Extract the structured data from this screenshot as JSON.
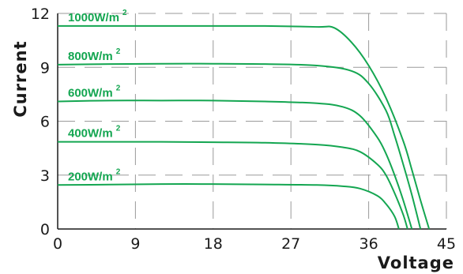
{
  "chart_data": {
    "type": "line",
    "xlabel": "Voltage",
    "ylabel": "Current",
    "xlim": [
      0,
      45
    ],
    "ylim": [
      0,
      12
    ],
    "xticks": [
      0,
      9,
      18,
      27,
      36,
      45
    ],
    "yticks": [
      0,
      3,
      6,
      9,
      12
    ],
    "x_tick_labels": [
      "0",
      "9",
      "18",
      "27",
      "36",
      "45"
    ],
    "y_tick_labels": [
      "0",
      "3",
      "6",
      "9",
      "12"
    ],
    "grid": "dashed",
    "series_color": "#14a651",
    "grid_color": "#9a9a9a",
    "series": [
      {
        "name": "1000W/m²",
        "label_text": "1000W/m",
        "label_sup": "2",
        "x": [
          0,
          6,
          12,
          18,
          24,
          30,
          32,
          34,
          36,
          38,
          40,
          41,
          42,
          43
        ],
        "y": [
          11.3,
          11.3,
          11.3,
          11.3,
          11.3,
          11.25,
          11.2,
          10.4,
          9.1,
          7.3,
          4.9,
          3.3,
          1.6,
          0
        ]
      },
      {
        "name": "800W/m²",
        "label_text": "800W/m",
        "label_sup": "2",
        "x": [
          0,
          6,
          12,
          18,
          24,
          30,
          34,
          36,
          38,
          39,
          40,
          41,
          42
        ],
        "y": [
          9.15,
          9.18,
          9.2,
          9.2,
          9.18,
          9.1,
          8.8,
          8.1,
          6.6,
          5.2,
          3.6,
          1.9,
          0
        ]
      },
      {
        "name": "600W/m²",
        "label_text": "600W/m",
        "label_sup": "2",
        "x": [
          0,
          6,
          12,
          18,
          24,
          30,
          33,
          35,
          37,
          38,
          39,
          40,
          41
        ],
        "y": [
          7.1,
          7.15,
          7.15,
          7.15,
          7.1,
          7.0,
          6.8,
          6.3,
          5.1,
          4.2,
          3.0,
          1.6,
          0
        ]
      },
      {
        "name": "400W/m²",
        "label_text": "400W/m",
        "label_sup": "2",
        "x": [
          0,
          6,
          12,
          18,
          24,
          30,
          33,
          35,
          37,
          38,
          39,
          40,
          40.5
        ],
        "y": [
          4.85,
          4.85,
          4.85,
          4.83,
          4.8,
          4.7,
          4.55,
          4.3,
          3.6,
          3.0,
          2.0,
          0.8,
          0
        ]
      },
      {
        "name": "200W/m²",
        "label_text": "200W/m",
        "label_sup": "2",
        "x": [
          0,
          6,
          12,
          18,
          24,
          30,
          33,
          35,
          37,
          38,
          39,
          39.5
        ],
        "y": [
          2.45,
          2.47,
          2.5,
          2.5,
          2.48,
          2.45,
          2.38,
          2.25,
          1.85,
          1.4,
          0.7,
          0
        ]
      }
    ]
  }
}
